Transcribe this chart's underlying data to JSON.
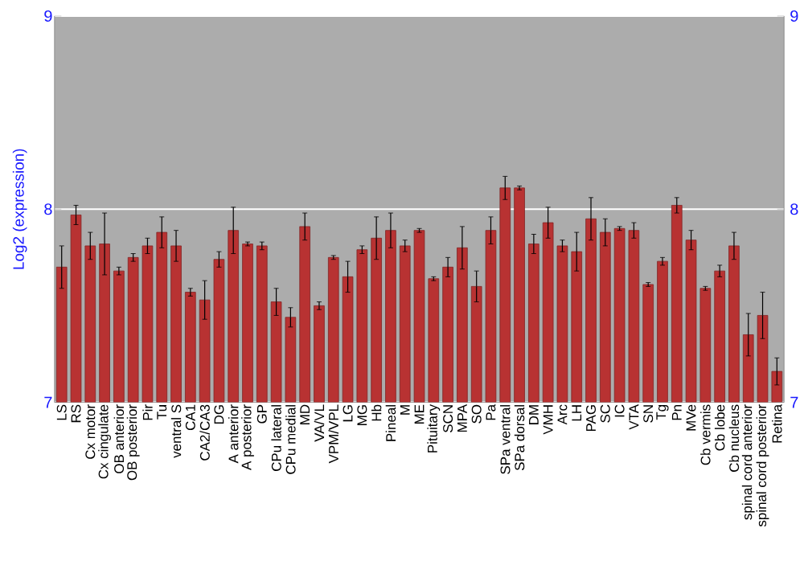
{
  "chart_data": {
    "type": "bar",
    "ylabel": "Log2 (expression)",
    "categories": [
      "LS",
      "RS",
      "Cx motor",
      "Cx cingulate",
      "OB anterior",
      "OB posterior",
      "Pir",
      "Tu",
      "ventral S",
      "CA1",
      "CA2/CA3",
      "DG",
      "A anterior",
      "A posterior",
      "GP",
      "CPu lateral",
      "CPu medial",
      "MD",
      "VA/VL",
      "VPM/VPL",
      "LG",
      "MG",
      "Hb",
      "Pineal",
      "M",
      "ME",
      "Pituitary",
      "SCN",
      "MPA",
      "SO",
      "Pa",
      "SPa ventral",
      "SPa dorsal",
      "DM",
      "VMH",
      "Arc",
      "LH",
      "PAG",
      "SC",
      "IC",
      "VTA",
      "SN",
      "Tg",
      "Pn",
      "MVe",
      "Cb vermis",
      "Cb lobe",
      "Cb nucleus",
      "spinal cord anterior",
      "spinal cord posterior",
      "Retina"
    ],
    "values": [
      7.7,
      7.97,
      7.81,
      7.82,
      7.68,
      7.75,
      7.81,
      7.88,
      7.81,
      7.57,
      7.53,
      7.74,
      7.89,
      7.82,
      7.81,
      7.52,
      7.44,
      7.91,
      7.5,
      7.75,
      7.65,
      7.79,
      7.85,
      7.89,
      7.81,
      7.89,
      7.64,
      7.7,
      7.8,
      7.6,
      7.89,
      8.11,
      8.11,
      7.82,
      7.93,
      7.81,
      7.78,
      7.95,
      7.88,
      7.9,
      7.89,
      7.61,
      7.73,
      8.02,
      7.84,
      7.59,
      7.68,
      7.81,
      7.35,
      7.45,
      7.16
    ],
    "errors": [
      0.11,
      0.05,
      0.07,
      0.16,
      0.02,
      0.02,
      0.04,
      0.08,
      0.08,
      0.02,
      0.1,
      0.04,
      0.12,
      0.01,
      0.02,
      0.07,
      0.05,
      0.07,
      0.02,
      0.01,
      0.08,
      0.02,
      0.11,
      0.09,
      0.03,
      0.01,
      0.01,
      0.05,
      0.11,
      0.08,
      0.07,
      0.06,
      0.01,
      0.05,
      0.08,
      0.03,
      0.1,
      0.11,
      0.07,
      0.01,
      0.04,
      0.01,
      0.02,
      0.04,
      0.05,
      0.01,
      0.03,
      0.07,
      0.11,
      0.12,
      0.07
    ],
    "color": "#b83232",
    "ylim": [
      7,
      9
    ],
    "yticks": [
      7,
      8,
      9
    ],
    "y2lim": [
      7,
      9
    ],
    "y2ticks": [
      7,
      8,
      9
    ],
    "grid": "y"
  }
}
